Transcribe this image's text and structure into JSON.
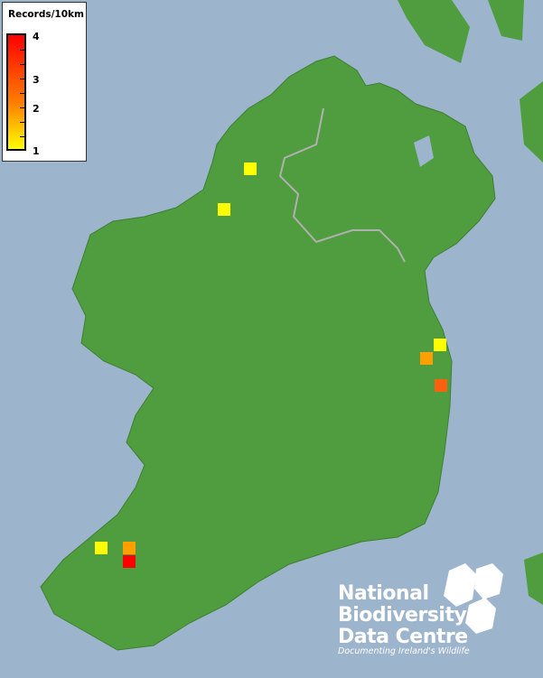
{
  "colors": {
    "sea": "#9cb4cc",
    "land": "#4f9d3e",
    "border": "#b0b0b0",
    "scale_low": "#ffff00",
    "scale_mid": "#ff8000",
    "scale_high": "#ff0000"
  },
  "legend": {
    "title": "Records/10km",
    "labels": [
      "4",
      "3",
      "2",
      "1"
    ],
    "min": 1,
    "max": 4
  },
  "records": [
    {
      "value": 1,
      "color": "#ffff00"
    },
    {
      "value": 1,
      "color": "#ffff00"
    },
    {
      "value": 1,
      "color": "#ffff00"
    },
    {
      "value": 2,
      "color": "#ffa000"
    },
    {
      "value": 3,
      "color": "#ff6010"
    },
    {
      "value": 1,
      "color": "#ffff00"
    },
    {
      "value": 2,
      "color": "#ffa000"
    },
    {
      "value": 4,
      "color": "#ff0000"
    }
  ],
  "logo": {
    "lines": [
      "National",
      "Biodiversity",
      "Data Centre"
    ],
    "tagline": "Documenting Ireland's Wildlife"
  }
}
